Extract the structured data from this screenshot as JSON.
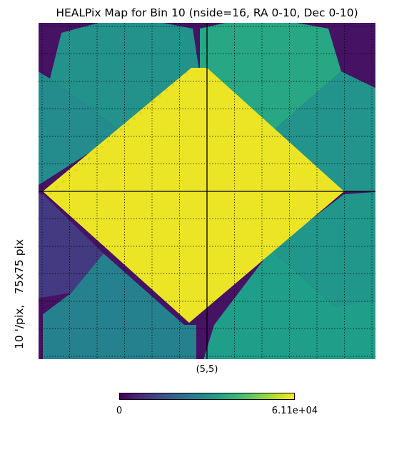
{
  "chart_data": {
    "type": "heatmap",
    "title": "HEALPix Map for Bin 10 (nside=16, RA 0-10, Dec 0-10)",
    "ylabel": "10 '/pix,   75x75 pix",
    "center_label": "(5,5)",
    "colorbar": {
      "colormap": "viridis",
      "min": 0,
      "max": 61100,
      "min_label": "0",
      "max_label": "6.11e+04"
    },
    "grid": true,
    "crosshair": true,
    "regions": [
      {
        "name": "central-diamond",
        "value": 59500
      },
      {
        "name": "upper-left-diamond",
        "value": 31000
      },
      {
        "name": "upper-right-diamond",
        "value": 36500
      },
      {
        "name": "lower-left-diamond",
        "value": 27000
      },
      {
        "name": "lower-right-diamond",
        "value": 34000
      },
      {
        "name": "left-edge-upper-diamond",
        "value": 29500
      },
      {
        "name": "right-edge-upper-diamond",
        "value": 31500
      },
      {
        "name": "left-edge-lower-diamond",
        "value": 10500
      },
      {
        "name": "right-edge-lower-diamond",
        "value": 32000
      },
      {
        "name": "corners",
        "value": 3000
      }
    ]
  },
  "colors": {
    "viridis_stops": [
      "#440154",
      "#482878",
      "#3e4989",
      "#31688e",
      "#26828e",
      "#1f9e89",
      "#35b779",
      "#6ece58",
      "#b5de2b",
      "#fde725"
    ]
  }
}
